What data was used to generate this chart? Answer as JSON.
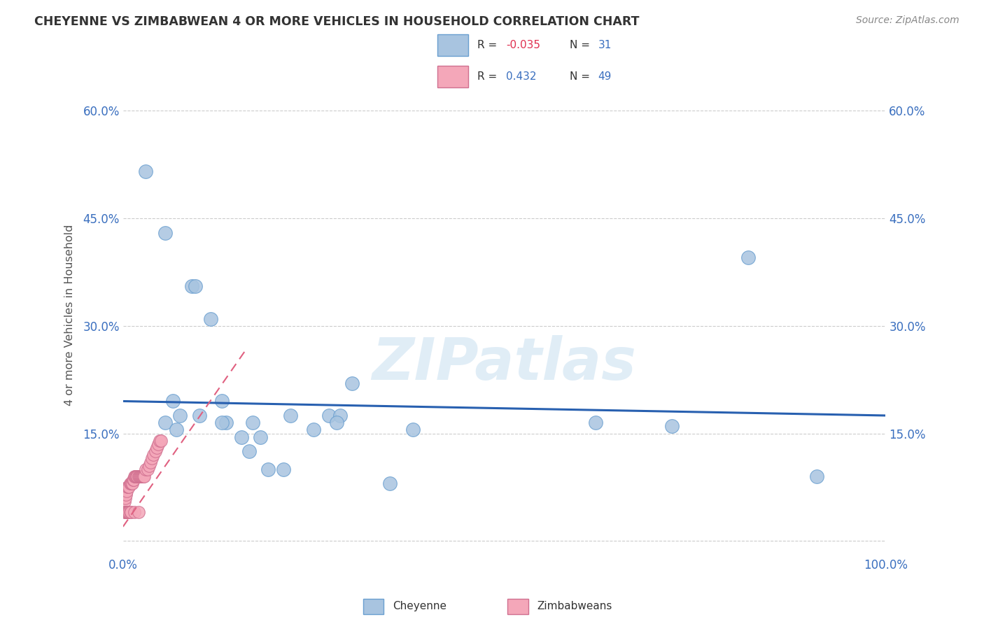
{
  "title": "CHEYENNE VS ZIMBABWEAN 4 OR MORE VEHICLES IN HOUSEHOLD CORRELATION CHART",
  "source": "Source: ZipAtlas.com",
  "ylabel": "4 or more Vehicles in Household",
  "xlabel": "",
  "watermark": "ZIPatlas",
  "xlim": [
    0.0,
    1.0
  ],
  "ylim": [
    -0.02,
    0.65
  ],
  "xticks": [
    0.0,
    0.2,
    0.4,
    0.6,
    0.8,
    1.0
  ],
  "xticklabels": [
    "0.0%",
    "",
    "",
    "",
    "",
    "100.0%"
  ],
  "yticks": [
    0.0,
    0.15,
    0.3,
    0.45,
    0.6
  ],
  "yticklabels": [
    "",
    "15.0%",
    "30.0%",
    "45.0%",
    "60.0%"
  ],
  "legend_r_cheyenne": "-0.035",
  "legend_n_cheyenne": "31",
  "legend_r_zimbabwean": "0.432",
  "legend_n_zimbabwean": "49",
  "cheyenne_color": "#a8c4e0",
  "zimbabwean_color": "#f4a7b9",
  "trendline_cheyenne_color": "#2860b0",
  "trendline_zimbabwean_color": "#e06080",
  "cheyenne_x": [
    0.03,
    0.055,
    0.09,
    0.095,
    0.115,
    0.13,
    0.065,
    0.075,
    0.1,
    0.22,
    0.27,
    0.285,
    0.135,
    0.155,
    0.165,
    0.19,
    0.21,
    0.35,
    0.38,
    0.62,
    0.72,
    0.82,
    0.91,
    0.055,
    0.07,
    0.13,
    0.17,
    0.28,
    0.3,
    0.18,
    0.25
  ],
  "cheyenne_y": [
    0.515,
    0.43,
    0.355,
    0.355,
    0.31,
    0.195,
    0.195,
    0.175,
    0.175,
    0.175,
    0.175,
    0.175,
    0.165,
    0.145,
    0.125,
    0.1,
    0.1,
    0.08,
    0.155,
    0.165,
    0.16,
    0.395,
    0.09,
    0.165,
    0.155,
    0.165,
    0.165,
    0.165,
    0.22,
    0.145,
    0.155
  ],
  "zimbabwean_x": [
    0.002,
    0.002,
    0.003,
    0.003,
    0.004,
    0.004,
    0.005,
    0.005,
    0.006,
    0.006,
    0.007,
    0.007,
    0.008,
    0.008,
    0.009,
    0.009,
    0.01,
    0.01,
    0.011,
    0.012,
    0.013,
    0.014,
    0.015,
    0.015,
    0.016,
    0.017,
    0.018,
    0.019,
    0.02,
    0.02,
    0.021,
    0.022,
    0.023,
    0.024,
    0.025,
    0.026,
    0.027,
    0.028,
    0.03,
    0.032,
    0.034,
    0.036,
    0.038,
    0.04,
    0.042,
    0.044,
    0.046,
    0.048,
    0.05
  ],
  "zimbabwean_y": [
    0.055,
    0.04,
    0.06,
    0.04,
    0.065,
    0.04,
    0.07,
    0.04,
    0.075,
    0.04,
    0.075,
    0.04,
    0.075,
    0.04,
    0.08,
    0.04,
    0.08,
    0.04,
    0.08,
    0.08,
    0.085,
    0.085,
    0.09,
    0.04,
    0.09,
    0.09,
    0.09,
    0.09,
    0.09,
    0.04,
    0.09,
    0.09,
    0.09,
    0.09,
    0.09,
    0.09,
    0.09,
    0.09,
    0.1,
    0.1,
    0.105,
    0.11,
    0.115,
    0.12,
    0.125,
    0.13,
    0.135,
    0.14,
    0.14
  ],
  "background_color": "#ffffff",
  "grid_color": "#cccccc",
  "trendline_cheyenne_start_x": 0.0,
  "trendline_cheyenne_end_x": 1.0,
  "trendline_cheyenne_start_y": 0.195,
  "trendline_cheyenne_end_y": 0.175,
  "trendline_zimbabwean_start_x": 0.0,
  "trendline_zimbabwean_end_x": 0.16,
  "trendline_zimbabwean_start_y": 0.02,
  "trendline_zimbabwean_end_y": 0.265
}
